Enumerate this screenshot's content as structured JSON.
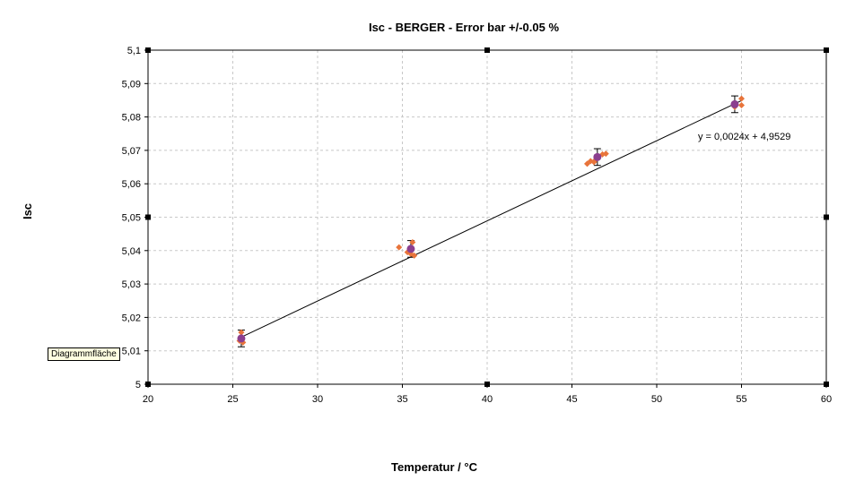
{
  "chart_data": {
    "type": "scatter",
    "title": "Isc - BERGER - Error bar +/-0.05 %",
    "xlabel": "Temperatur / °C",
    "ylabel": "Isc",
    "xlim": [
      20,
      60
    ],
    "ylim": [
      5,
      5.1
    ],
    "x_ticks": [
      20,
      25,
      30,
      35,
      40,
      45,
      50,
      55,
      60
    ],
    "x_tick_labels": [
      "20",
      "25",
      "30",
      "35",
      "40",
      "45",
      "50",
      "55",
      "60"
    ],
    "y_ticks": [
      5,
      5.01,
      5.02,
      5.03,
      5.04,
      5.05,
      5.06,
      5.07,
      5.08,
      5.09,
      5.1
    ],
    "y_tick_labels": [
      "5",
      "5,01",
      "5,02",
      "5,03",
      "5,04",
      "5,05",
      "5,06",
      "5,07",
      "5,08",
      "5,09",
      "5,1"
    ],
    "grid": true,
    "series": [
      {
        "marker": "diamond",
        "color": "#e8743b",
        "points": [
          {
            "x": 25.5,
            "y": 5.0155
          },
          {
            "x": 25.6,
            "y": 5.0125
          },
          {
            "x": 25.4,
            "y": 5.013
          },
          {
            "x": 34.8,
            "y": 5.041
          },
          {
            "x": 35.6,
            "y": 5.0425
          },
          {
            "x": 35.5,
            "y": 5.039
          },
          {
            "x": 35.7,
            "y": 5.0385
          },
          {
            "x": 35.3,
            "y": 5.0395
          },
          {
            "x": 45.9,
            "y": 5.066
          },
          {
            "x": 46.1,
            "y": 5.0668
          },
          {
            "x": 46.4,
            "y": 5.0672
          },
          {
            "x": 46.8,
            "y": 5.0688
          },
          {
            "x": 46.3,
            "y": 5.0665
          },
          {
            "x": 47.0,
            "y": 5.069
          },
          {
            "x": 55.0,
            "y": 5.0855
          },
          {
            "x": 55.0,
            "y": 5.0835
          },
          {
            "x": 54.6,
            "y": 5.083
          }
        ]
      },
      {
        "marker": "circle",
        "color": "#8b3f8f",
        "points": [
          {
            "x": 25.5,
            "y": 5.0137
          },
          {
            "x": 35.5,
            "y": 5.0405
          },
          {
            "x": 46.5,
            "y": 5.068
          },
          {
            "x": 54.6,
            "y": 5.0838
          }
        ],
        "error": 0.0025
      }
    ],
    "trendline": {
      "x_range": [
        25.5,
        55.0
      ],
      "slope": 0.0024,
      "intercept": 4.9529,
      "equation": "y = 0,0024x + 4,9529"
    }
  },
  "tooltip": "Diagrammfläche"
}
